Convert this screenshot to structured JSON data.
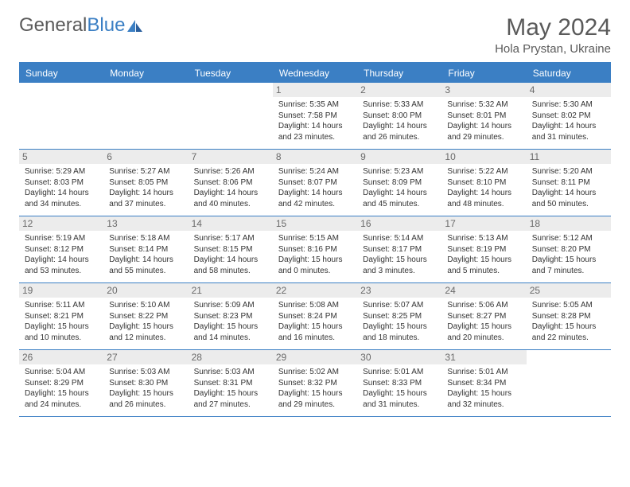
{
  "brand": {
    "part1": "General",
    "part2": "Blue"
  },
  "title": "May 2024",
  "location": "Hola Prystan, Ukraine",
  "colors": {
    "header_bg": "#3b7fc4",
    "header_text": "#ffffff",
    "daynum_bg": "#ececec",
    "daynum_text": "#6a6a6a",
    "body_text": "#333333",
    "title_text": "#5a5a5a"
  },
  "days_of_week": [
    "Sunday",
    "Monday",
    "Tuesday",
    "Wednesday",
    "Thursday",
    "Friday",
    "Saturday"
  ],
  "weeks": [
    [
      null,
      null,
      null,
      {
        "n": "1",
        "sr": "5:35 AM",
        "ss": "7:58 PM",
        "dl": "14 hours and 23 minutes."
      },
      {
        "n": "2",
        "sr": "5:33 AM",
        "ss": "8:00 PM",
        "dl": "14 hours and 26 minutes."
      },
      {
        "n": "3",
        "sr": "5:32 AM",
        "ss": "8:01 PM",
        "dl": "14 hours and 29 minutes."
      },
      {
        "n": "4",
        "sr": "5:30 AM",
        "ss": "8:02 PM",
        "dl": "14 hours and 31 minutes."
      }
    ],
    [
      {
        "n": "5",
        "sr": "5:29 AM",
        "ss": "8:03 PM",
        "dl": "14 hours and 34 minutes."
      },
      {
        "n": "6",
        "sr": "5:27 AM",
        "ss": "8:05 PM",
        "dl": "14 hours and 37 minutes."
      },
      {
        "n": "7",
        "sr": "5:26 AM",
        "ss": "8:06 PM",
        "dl": "14 hours and 40 minutes."
      },
      {
        "n": "8",
        "sr": "5:24 AM",
        "ss": "8:07 PM",
        "dl": "14 hours and 42 minutes."
      },
      {
        "n": "9",
        "sr": "5:23 AM",
        "ss": "8:09 PM",
        "dl": "14 hours and 45 minutes."
      },
      {
        "n": "10",
        "sr": "5:22 AM",
        "ss": "8:10 PM",
        "dl": "14 hours and 48 minutes."
      },
      {
        "n": "11",
        "sr": "5:20 AM",
        "ss": "8:11 PM",
        "dl": "14 hours and 50 minutes."
      }
    ],
    [
      {
        "n": "12",
        "sr": "5:19 AM",
        "ss": "8:12 PM",
        "dl": "14 hours and 53 minutes."
      },
      {
        "n": "13",
        "sr": "5:18 AM",
        "ss": "8:14 PM",
        "dl": "14 hours and 55 minutes."
      },
      {
        "n": "14",
        "sr": "5:17 AM",
        "ss": "8:15 PM",
        "dl": "14 hours and 58 minutes."
      },
      {
        "n": "15",
        "sr": "5:15 AM",
        "ss": "8:16 PM",
        "dl": "15 hours and 0 minutes."
      },
      {
        "n": "16",
        "sr": "5:14 AM",
        "ss": "8:17 PM",
        "dl": "15 hours and 3 minutes."
      },
      {
        "n": "17",
        "sr": "5:13 AM",
        "ss": "8:19 PM",
        "dl": "15 hours and 5 minutes."
      },
      {
        "n": "18",
        "sr": "5:12 AM",
        "ss": "8:20 PM",
        "dl": "15 hours and 7 minutes."
      }
    ],
    [
      {
        "n": "19",
        "sr": "5:11 AM",
        "ss": "8:21 PM",
        "dl": "15 hours and 10 minutes."
      },
      {
        "n": "20",
        "sr": "5:10 AM",
        "ss": "8:22 PM",
        "dl": "15 hours and 12 minutes."
      },
      {
        "n": "21",
        "sr": "5:09 AM",
        "ss": "8:23 PM",
        "dl": "15 hours and 14 minutes."
      },
      {
        "n": "22",
        "sr": "5:08 AM",
        "ss": "8:24 PM",
        "dl": "15 hours and 16 minutes."
      },
      {
        "n": "23",
        "sr": "5:07 AM",
        "ss": "8:25 PM",
        "dl": "15 hours and 18 minutes."
      },
      {
        "n": "24",
        "sr": "5:06 AM",
        "ss": "8:27 PM",
        "dl": "15 hours and 20 minutes."
      },
      {
        "n": "25",
        "sr": "5:05 AM",
        "ss": "8:28 PM",
        "dl": "15 hours and 22 minutes."
      }
    ],
    [
      {
        "n": "26",
        "sr": "5:04 AM",
        "ss": "8:29 PM",
        "dl": "15 hours and 24 minutes."
      },
      {
        "n": "27",
        "sr": "5:03 AM",
        "ss": "8:30 PM",
        "dl": "15 hours and 26 minutes."
      },
      {
        "n": "28",
        "sr": "5:03 AM",
        "ss": "8:31 PM",
        "dl": "15 hours and 27 minutes."
      },
      {
        "n": "29",
        "sr": "5:02 AM",
        "ss": "8:32 PM",
        "dl": "15 hours and 29 minutes."
      },
      {
        "n": "30",
        "sr": "5:01 AM",
        "ss": "8:33 PM",
        "dl": "15 hours and 31 minutes."
      },
      {
        "n": "31",
        "sr": "5:01 AM",
        "ss": "8:34 PM",
        "dl": "15 hours and 32 minutes."
      },
      null
    ]
  ],
  "labels": {
    "sunrise": "Sunrise:",
    "sunset": "Sunset:",
    "daylight": "Daylight:"
  }
}
